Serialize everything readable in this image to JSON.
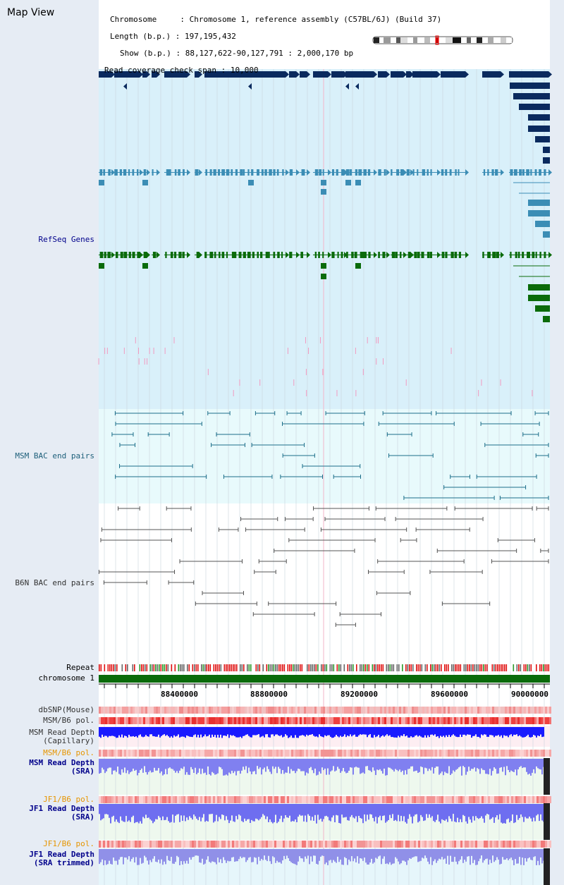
{
  "header": {
    "title": "Map View",
    "chromosome_key": "Chromosome",
    "chromosome_value": "Chromosome 1, reference assembly (C57BL/6J) (Build 37)",
    "length_key": "Length (b.p.)",
    "length_value": "197,195,432",
    "show_key": "Show (b.p.)",
    "show_value": "88,127,622-90,127,791 : 2,000,170 bp",
    "span_key": "Read coverage check span",
    "span_value": "10,000"
  },
  "tracks": {
    "refseq": "RefSeq Genes",
    "msm_bac": "MSM BAC end pairs",
    "b6n_bac": "B6N BAC end pairs",
    "repeat": "Repeat",
    "chromosome": "chromosome 1",
    "dbsnp": "dbSNP(Mouse)",
    "msm_b6_pol_1": "MSM/B6 pol.",
    "msm_depth_cap_1": "MSM Read Depth",
    "msm_depth_cap_2": "(Capillary)",
    "msm_b6_pol_2": "MSM/B6 pol.",
    "msm_depth_sra_1": "MSM Read Depth",
    "msm_depth_sra_2": "(SRA)",
    "jf1_b6_pol_1": "JF1/B6 pol.",
    "jf1_depth_sra_1": "JF1 Read Depth",
    "jf1_depth_sra_2": "(SRA)",
    "jf1_b6_pol_2": "JF1/B6 pol.",
    "jf1_depth_trim_1": "JF1 Read Depth",
    "jf1_depth_trim_2": "(SRA trimmed)"
  },
  "axis": {
    "ticks": [
      "88400000",
      "88800000",
      "89200000",
      "89600000",
      "90000000"
    ]
  },
  "colors": {
    "refseq_dark": "#0a2a5e",
    "refseq_mid": "#3b8db5",
    "refseq_green": "#0a6b0a",
    "msm_bac": "#1d6f8a",
    "b6n_bac": "#555555",
    "label_blue": "#00008b",
    "label_teal": "#1d5f7a",
    "label_orange": "#e69500",
    "label_dark": "#333333"
  }
}
